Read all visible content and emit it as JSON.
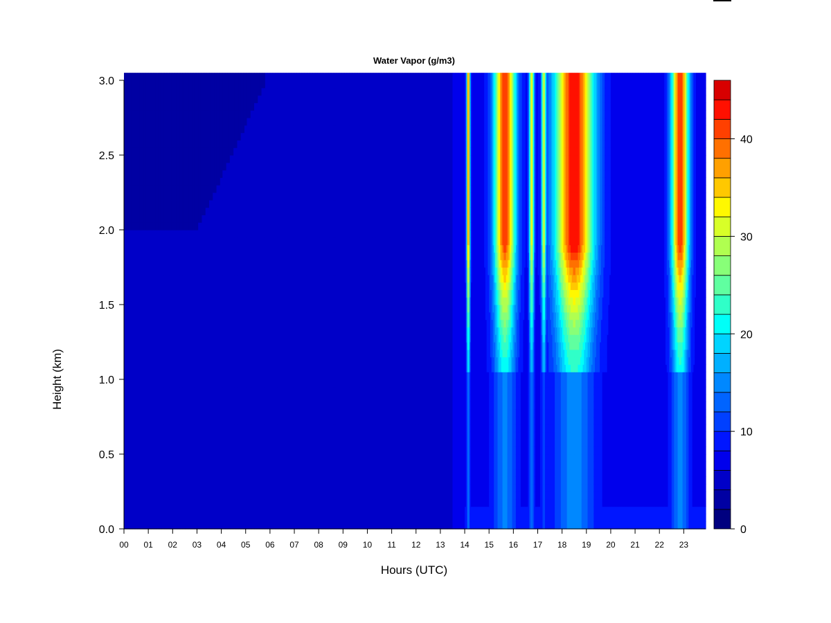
{
  "chart_data": {
    "type": "heatmap",
    "title": "Water Vapor (g/m3)",
    "xlabel": "Hours (UTC)",
    "ylabel": "Height (km)",
    "x_range": [
      0,
      24
    ],
    "ylim": [
      0.0,
      3.0
    ],
    "x_tick_labels": [
      "00",
      "01",
      "02",
      "03",
      "04",
      "05",
      "06",
      "07",
      "08",
      "09",
      "10",
      "11",
      "12",
      "13",
      "14",
      "15",
      "16",
      "17",
      "18",
      "19",
      "20",
      "21",
      "22",
      "23"
    ],
    "y_tick_labels": [
      "0.0",
      "0.5",
      "1.0",
      "1.5",
      "2.0",
      "2.5",
      "3.0"
    ],
    "y_tick_values": [
      0.0,
      0.5,
      1.0,
      1.5,
      2.0,
      2.5,
      3.0
    ],
    "colorbar": {
      "min": 0,
      "max": 46,
      "step": 2,
      "tick_values": [
        0,
        10,
        20,
        30,
        40
      ],
      "tick_labels": [
        "0",
        "10",
        "20",
        "30",
        "40"
      ],
      "colors": [
        "#00007F",
        "#0000A3",
        "#0000C8",
        "#0000EC",
        "#0016FF",
        "#0040FF",
        "#0064FF",
        "#0088FF",
        "#00B0FF",
        "#00D4FF",
        "#00FFF8",
        "#30FFC8",
        "#60FFA0",
        "#88FF78",
        "#B0FF50",
        "#D8FF28",
        "#FFF800",
        "#FFC800",
        "#FFA000",
        "#FF7000",
        "#FF4000",
        "#FF1000",
        "#D80000",
        "#A80000",
        "#7F0000"
      ]
    },
    "grid": false,
    "legend": "colorbar-right",
    "features": {
      "background_low": 4,
      "background_high_early": 2,
      "background_late": 7,
      "plumes": [
        {
          "center_hour": 14.15,
          "width_hours": 0.07,
          "peak": 38
        },
        {
          "center_hour": 15.65,
          "width_hours": 0.45,
          "peak": 41
        },
        {
          "center_hour": 16.75,
          "width_hours": 0.1,
          "peak": 32
        },
        {
          "center_hour": 17.25,
          "width_hours": 0.1,
          "peak": 30
        },
        {
          "center_hour": 18.5,
          "width_hours": 0.8,
          "peak": 44
        },
        {
          "center_hour": 22.85,
          "width_hours": 0.35,
          "peak": 42
        }
      ]
    }
  }
}
